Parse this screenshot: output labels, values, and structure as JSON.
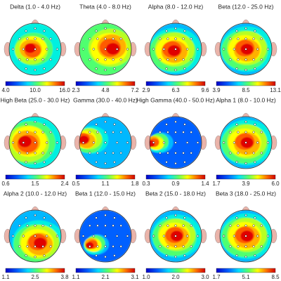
{
  "maps": [
    {
      "title": "Delta (1.0 - 4.0 Hz)",
      "ticks": [
        "4.0",
        "10.0",
        "16.0"
      ]
    },
    {
      "title": "Theta (4.0 - 8.0 Hz)",
      "ticks": [
        "2.3",
        "4.8",
        "7.2"
      ]
    },
    {
      "title": "Alpha (8.0 - 12.0 Hz)",
      "ticks": [
        "2.9",
        "6.3",
        "9.6"
      ]
    },
    {
      "title": "Beta (12.0 - 25.0 Hz)",
      "ticks": [
        "3.9",
        "8.5",
        "13.1"
      ]
    },
    {
      "title": "High Beta (25.0 - 30.0 Hz)",
      "ticks": [
        "0.6",
        "1.5",
        "2.4"
      ]
    },
    {
      "title": "Gamma (30.0 - 40.0 Hz)",
      "ticks": [
        "0.5",
        "1.1",
        "1.8"
      ]
    },
    {
      "title": "High Gamma (40.0 - 50.0 Hz)",
      "ticks": [
        "0.3",
        "0.9",
        "1.4"
      ]
    },
    {
      "title": "Alpha 1 (8.0 - 10.0 Hz)",
      "ticks": [
        "1.7",
        "3.9",
        "6.0"
      ]
    },
    {
      "title": "Alpha 2 (10.0 - 12.0 Hz)",
      "ticks": [
        "1.1",
        "2.5",
        "3.8"
      ]
    },
    {
      "title": "Beta 1 (12.0 - 15.0 Hz)",
      "ticks": [
        "1.1",
        "2.1",
        "3.1"
      ]
    },
    {
      "title": "Beta 2 (15.0 - 18.0 Hz)",
      "ticks": [
        "1.0",
        "2.0",
        "3.0"
      ]
    },
    {
      "title": "Beta 3 (18.0 - 25.0 Hz)",
      "ticks": [
        "1.7",
        "5.1",
        "8.5"
      ]
    }
  ]
}
